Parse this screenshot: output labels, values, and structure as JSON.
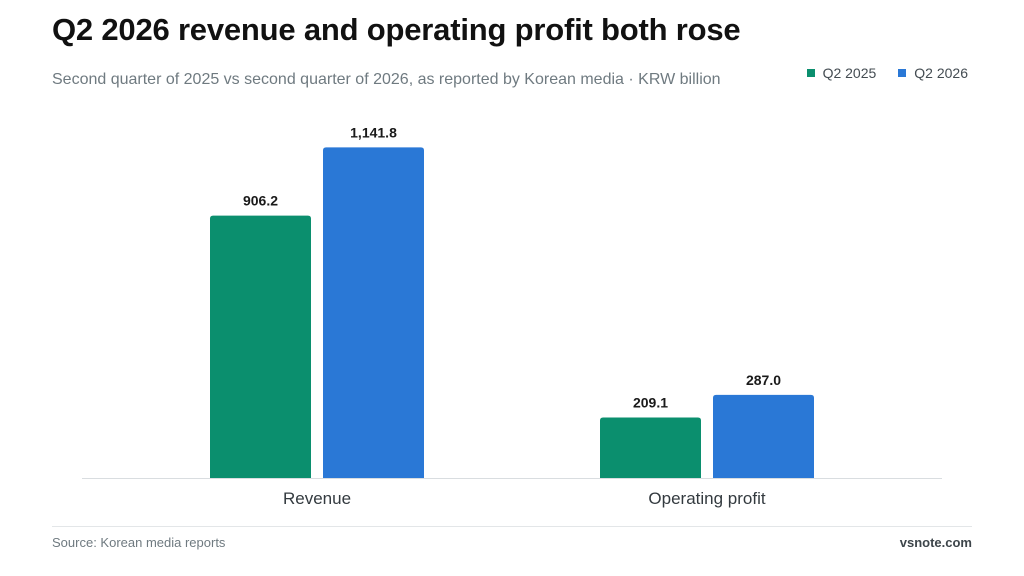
{
  "header": {
    "title": "Q2 2026 revenue and operating profit both rose",
    "subtitle": "Second quarter of 2025 vs second quarter of 2026, as reported by Korean media · KRW billion"
  },
  "legend": {
    "items": [
      {
        "label": "Q2 2025",
        "color": "#0b8f6e"
      },
      {
        "label": "Q2 2026",
        "color": "#2a78d6"
      }
    ]
  },
  "chart_data": {
    "type": "bar",
    "title": "Q2 2026 revenue and operating profit both rose",
    "subtitle": "Second quarter of 2025 vs second quarter of 2026, as reported by Korean media · KRW billion",
    "categories": [
      "Revenue",
      "Operating profit"
    ],
    "series": [
      {
        "name": "Q2 2025",
        "values": [
          906.2,
          209.1
        ],
        "labels": [
          "906.2",
          "209.1"
        ],
        "color": "#0b8f6e"
      },
      {
        "name": "Q2 2026",
        "values": [
          1141.8,
          287.0
        ],
        "labels": [
          "1,141.8",
          "287.0"
        ],
        "color": "#2a78d6"
      }
    ],
    "ylim": [
      0,
      1250
    ],
    "grid": false,
    "legend": "top-right"
  },
  "footer": {
    "source": "Source: Korean media reports",
    "brand": "vsnote.com"
  }
}
